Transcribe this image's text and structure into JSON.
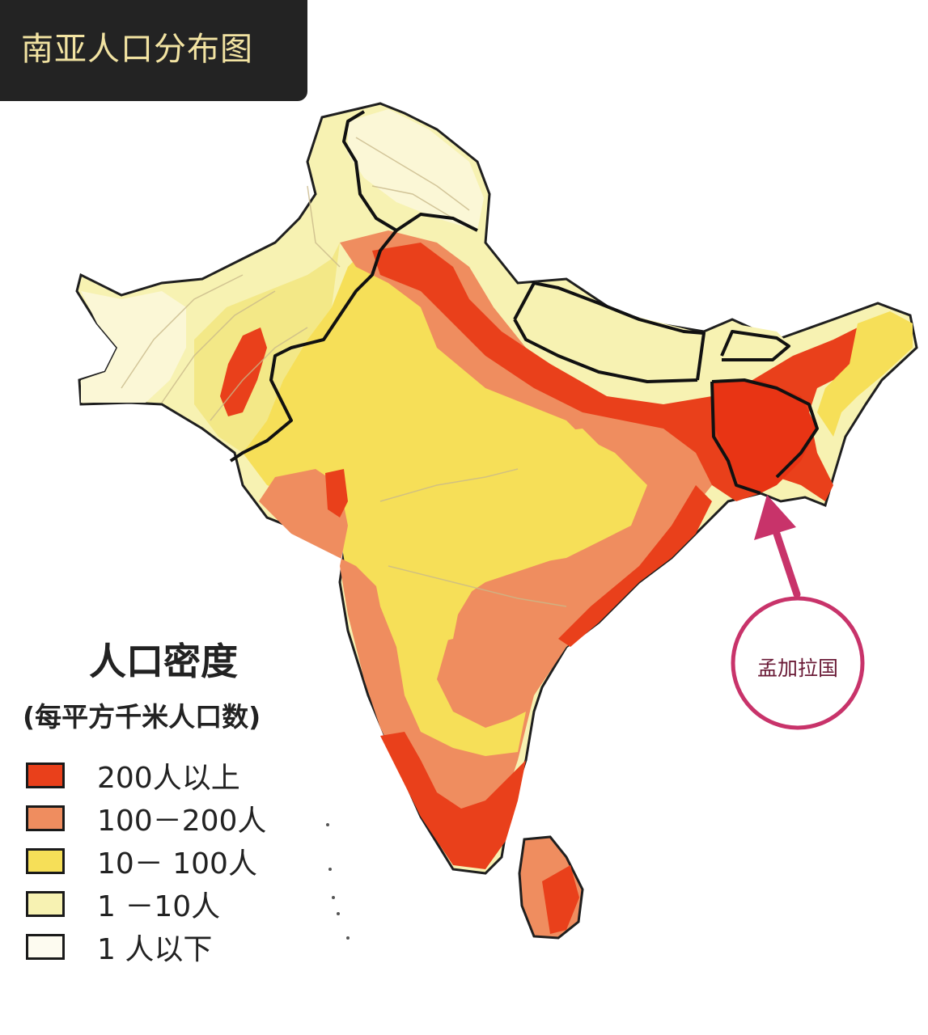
{
  "title": "南亚人口分布图",
  "legend": {
    "title": "人口密度",
    "subtitle": "(每平方千米人口数)",
    "items": [
      {
        "label": "200人以上",
        "color": "#e9401b"
      },
      {
        "label": "100－200人",
        "color": "#ef8d5f"
      },
      {
        "label": "10－ 100人",
        "color": "#f6df58"
      },
      {
        "label": "1 －10人",
        "color": "#f7f2b2"
      },
      {
        "label": "1 人以下",
        "color": "#fdfbf0"
      }
    ]
  },
  "annotation": {
    "label": "孟加拉国",
    "color": "#c8336a"
  }
}
